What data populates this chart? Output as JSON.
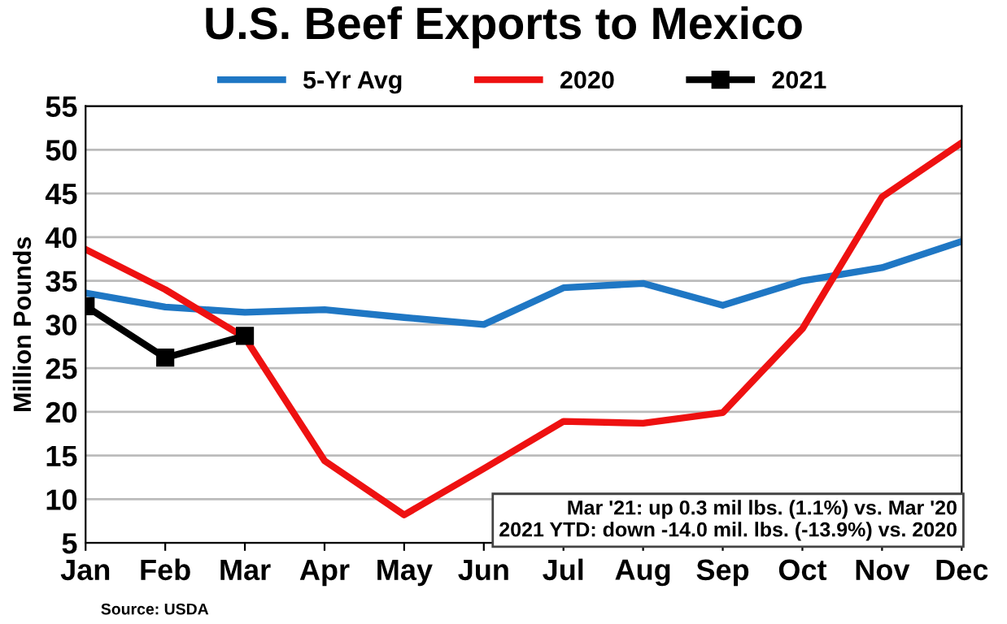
{
  "chart_data": {
    "type": "line",
    "title": "U.S. Beef Exports to Mexico",
    "ylabel": "Million Pounds",
    "categories": [
      "Jan",
      "Feb",
      "Mar",
      "Apr",
      "May",
      "Jun",
      "Jul",
      "Aug",
      "Sep",
      "Oct",
      "Nov",
      "Dec"
    ],
    "series": [
      {
        "name": "5-Yr Avg",
        "color": "#1f77c4",
        "values": [
          33.6,
          32,
          31.4,
          31.7,
          30.8,
          30,
          34.2,
          34.7,
          32.2,
          35,
          36.5,
          39.5
        ]
      },
      {
        "name": "2020",
        "color": "#ee1111",
        "values": [
          38.6,
          34,
          28.5,
          14.4,
          8.2,
          13.5,
          18.9,
          18.7,
          19.9,
          29.5,
          44.6,
          50.8
        ]
      },
      {
        "name": "2021",
        "color": "#000000",
        "marker": "square",
        "values": [
          32.1,
          26.2,
          28.7,
          null,
          null,
          null,
          null,
          null,
          null,
          null,
          null,
          null
        ]
      }
    ],
    "ylim": [
      5,
      55
    ],
    "yticks": [
      5,
      10,
      15,
      20,
      25,
      30,
      35,
      40,
      45,
      50,
      55
    ],
    "grid": "y",
    "legend": "top",
    "annotations": [
      "Mar '21: up 0.3 mil lbs. (1.1%) vs. Mar '20\n2021 YTD: down -14.0 mil. lbs. (-13.9%) vs. 2020",
      "Source: USDA"
    ]
  }
}
